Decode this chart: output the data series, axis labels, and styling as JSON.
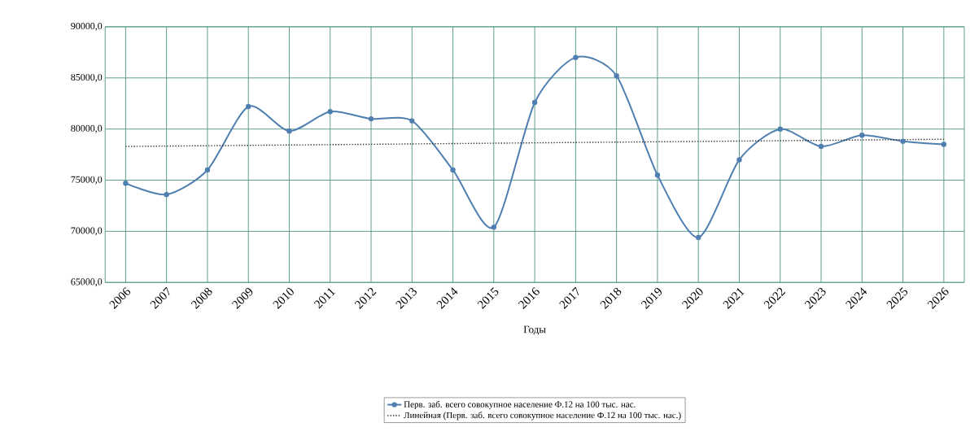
{
  "chart_data": {
    "type": "line",
    "xlabel": "Годы",
    "x": [
      2006,
      2007,
      2008,
      2009,
      2010,
      2011,
      2012,
      2013,
      2014,
      2015,
      2016,
      2017,
      2018,
      2019,
      2020,
      2021,
      2022,
      2023,
      2024,
      2025,
      2026
    ],
    "xlim": [
      2005.5,
      2026.5
    ],
    "xticks": [
      2006,
      2007,
      2008,
      2009,
      2010,
      2011,
      2012,
      2013,
      2014,
      2015,
      2016,
      2017,
      2018,
      2019,
      2020,
      2021,
      2022,
      2023,
      2024,
      2025,
      2026
    ],
    "ylim": [
      65000,
      90000
    ],
    "yticks": [
      {
        "value": 65000,
        "label": "65000,0"
      },
      {
        "value": 70000,
        "label": "70000,0"
      },
      {
        "value": 75000,
        "label": "75000,0"
      },
      {
        "value": 80000,
        "label": "80000,0"
      },
      {
        "value": 85000,
        "label": "85000,0"
      },
      {
        "value": 90000,
        "label": "90000,0"
      }
    ],
    "grid": true,
    "legend": "bottom",
    "series": [
      {
        "name": "Перв. заб. всего совокупное население Ф.12 на 100 тыс. нас.",
        "color": "#4f7fb0",
        "marker": "circle",
        "line_style": "solid",
        "values": [
          74700,
          73600,
          76000,
          82200,
          79800,
          81700,
          81000,
          80800,
          76000,
          70400,
          82600,
          87000,
          85200,
          75500,
          69400,
          77000,
          80000,
          78300,
          79400,
          78800,
          78500
        ]
      },
      {
        "name": "Линейная (Перв. заб. всего совокупное население Ф.12 на 100 тыс. нас.)",
        "type": "line",
        "color": "#333333",
        "marker": "none",
        "line_style": "dotted",
        "x": [
          2006,
          2026
        ],
        "values": [
          78300,
          79000
        ]
      }
    ]
  }
}
